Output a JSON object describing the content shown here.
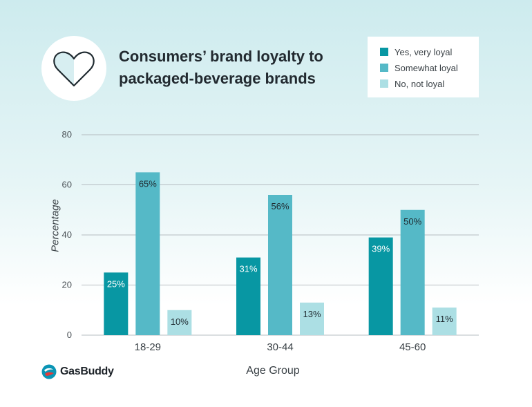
{
  "title_line1": "Consumers’ brand loyalty to",
  "title_line2": "packaged-beverage brands",
  "brand": "GasBuddy",
  "chart_data": {
    "type": "bar",
    "title": "Consumers’ brand loyalty to packaged-beverage brands",
    "xlabel": "Age Group",
    "ylabel": "Percentage",
    "categories": [
      "18-29",
      "30-44",
      "45-60"
    ],
    "ylim": [
      0,
      80
    ],
    "yticks": [
      0,
      20,
      40,
      60,
      80
    ],
    "grid": true,
    "legend_position": "top-right",
    "series": [
      {
        "name": "Yes, very loyal",
        "values": [
          25,
          31,
          39
        ],
        "labels": [
          "25%",
          "31%",
          "39%"
        ],
        "color": "#0897a3",
        "label_color": "#ffffff"
      },
      {
        "name": "Somewhat loyal",
        "values": [
          65,
          56,
          50
        ],
        "labels": [
          "65%",
          "56%",
          "50%"
        ],
        "color": "#55b9c7",
        "label_color": "#1f2a30"
      },
      {
        "name": "No, not loyal",
        "values": [
          10,
          13,
          11
        ],
        "labels": [
          "10%",
          "13%",
          "11%"
        ],
        "color": "#acdfe4",
        "label_color": "#1f2a30"
      }
    ]
  },
  "colors": {
    "gridline": "#b5bcc0",
    "tick_text": "#4a5156",
    "heart_icon": "heart-icon",
    "logo_icon": "gasbuddy-logo-icon"
  }
}
